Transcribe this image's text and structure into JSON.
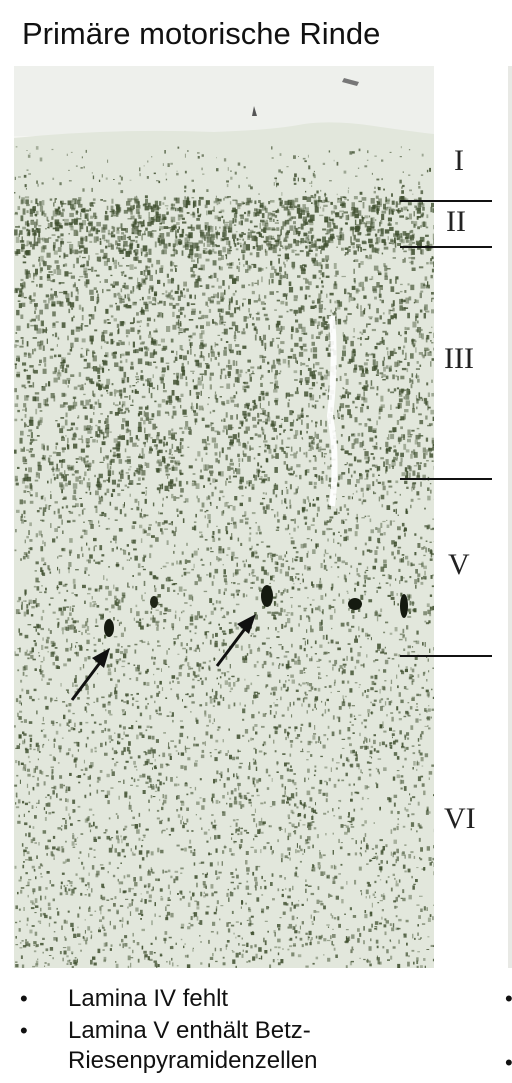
{
  "title": "Primäre motorische Rinde",
  "image": {
    "description_icon": "stained-cortex-micrograph",
    "layers": [
      {
        "label": "I"
      },
      {
        "label": "II"
      },
      {
        "label": "III"
      },
      {
        "label": "V"
      },
      {
        "label": "VI"
      }
    ],
    "arrows": 2
  },
  "bullets": [
    {
      "text": "Lamina IV fehlt"
    },
    {
      "text": "Lamina V enthält Betz-Riesenpyramidenzellen"
    }
  ],
  "colors": {
    "tissue_background": "#f4f5f1",
    "stain": "#3f4f2f",
    "text": "#111111"
  }
}
